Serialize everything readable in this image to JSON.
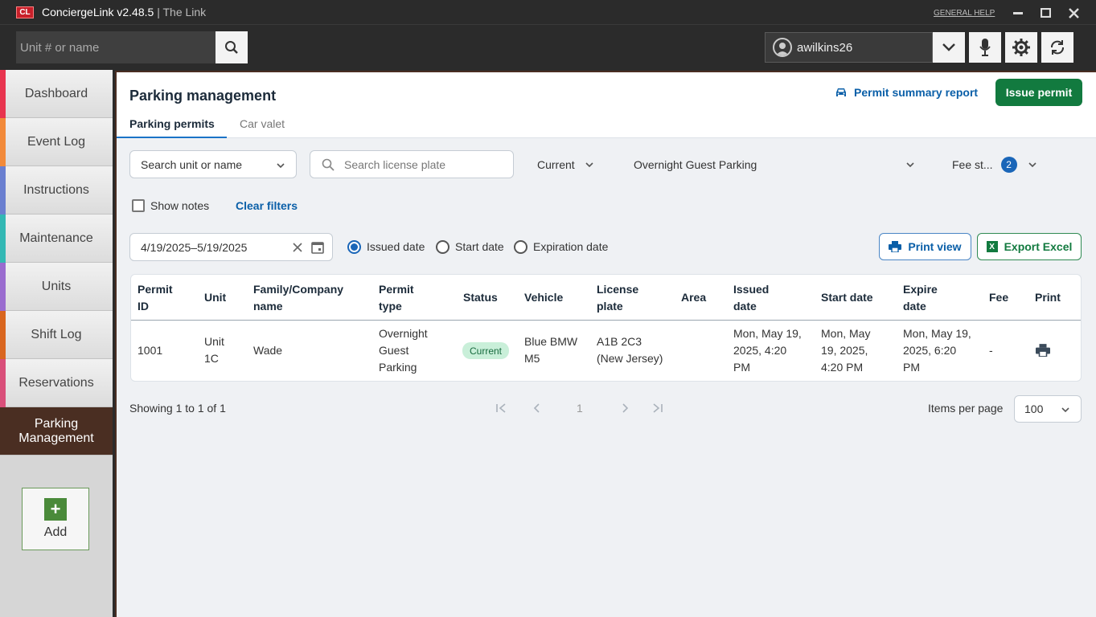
{
  "app": {
    "logo_text": "CL",
    "name": "ConciergeLink v2.48.5",
    "separator": " | ",
    "subtitle": "The Link",
    "general_help": "GENERAL HELP"
  },
  "topbar": {
    "search_placeholder": "Unit # or name",
    "username": "awilkins26"
  },
  "sidebar": {
    "items": [
      {
        "label": "Dashboard",
        "color": "#e8344f"
      },
      {
        "label": "Event Log",
        "color": "#f28a3a"
      },
      {
        "label": "Instructions",
        "color": "#6a7fd0"
      },
      {
        "label": "Maintenance",
        "color": "#33b8b4"
      },
      {
        "label": "Units",
        "color": "#9a6ccf"
      },
      {
        "label": "Shift Log",
        "color": "#d9661f"
      },
      {
        "label": "Reservations",
        "color": "#d94f7a"
      },
      {
        "label": "Parking Management",
        "line1": "Parking",
        "line2": "Management",
        "active": true
      }
    ],
    "add_label": "Add"
  },
  "main": {
    "title": "Parking management",
    "tabs": [
      {
        "label": "Parking permits",
        "active": true
      },
      {
        "label": "Car valet",
        "active": false
      }
    ],
    "summary_link": "Permit summary report",
    "issue_button": "Issue permit",
    "filters": {
      "unit_search": "Search unit or name",
      "plate_search_placeholder": "Search license plate",
      "status_select": "Current",
      "permit_type_select": "Overnight Guest Parking",
      "fee_status_select": "Fee st...",
      "fee_status_count": "2",
      "show_notes": "Show notes",
      "clear_filters": "Clear filters",
      "date_range": "4/19/2025–5/19/2025",
      "date_options": [
        "Issued date",
        "Start date",
        "Expiration date"
      ],
      "selected_date_option": "Issued date"
    },
    "print_view": "Print view",
    "export_excel": "Export Excel",
    "xl_icon_letter": "X",
    "table": {
      "columns": [
        {
          "line1": "Permit",
          "line2": "ID"
        },
        {
          "line1": "Unit",
          "line2": ""
        },
        {
          "line1": "Family/Company",
          "line2": "name"
        },
        {
          "line1": "Permit",
          "line2": "type"
        },
        {
          "line1": "Status",
          "line2": ""
        },
        {
          "line1": "Vehicle",
          "line2": ""
        },
        {
          "line1": "License",
          "line2": "plate"
        },
        {
          "line1": "Area",
          "line2": ""
        },
        {
          "line1": "Issued",
          "line2": "date"
        },
        {
          "line1": "Start date",
          "line2": ""
        },
        {
          "line1": "Expire",
          "line2": "date"
        },
        {
          "line1": "Fee",
          "line2": ""
        },
        {
          "line1": "Print",
          "line2": ""
        }
      ],
      "rows": [
        {
          "permit_id": "1001",
          "unit": [
            "Unit",
            "1C"
          ],
          "family": "Wade",
          "permit_type": [
            "Overnight",
            "Guest",
            "Parking"
          ],
          "status": "Current",
          "vehicle": [
            "Blue BMW",
            "M5"
          ],
          "license_plate": [
            "A1B 2C3",
            "(New Jersey)"
          ],
          "area": "",
          "issued_date": [
            "Mon, May 19,",
            "2025, 4:20",
            "PM"
          ],
          "start_date": [
            "Mon, May",
            "19, 2025,",
            "4:20 PM"
          ],
          "expire_date": [
            "Mon, May 19,",
            "2025, 6:20",
            "PM"
          ],
          "fee": "-"
        }
      ]
    },
    "pagination": {
      "showing": "Showing 1 to 1 of 1",
      "current_page": "1",
      "items_per_page_label": "Items per page",
      "items_per_page": "100"
    }
  }
}
